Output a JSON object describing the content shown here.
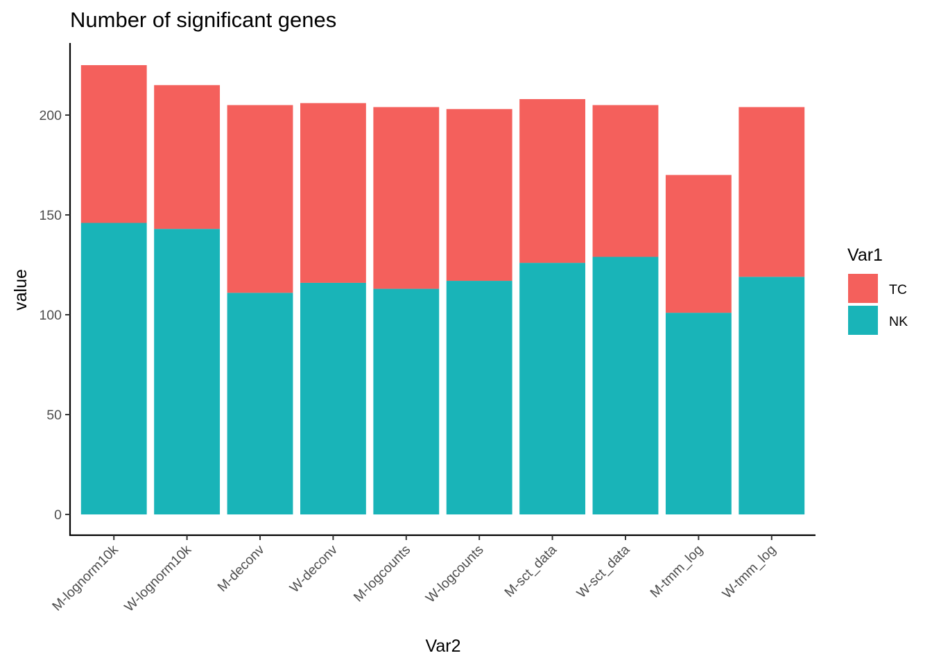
{
  "chart_data": {
    "type": "bar",
    "stacked": true,
    "title": "Number of significant genes",
    "xlabel": "Var2",
    "ylabel": "value",
    "ylim": [
      -10.4,
      236.1
    ],
    "yticks": [
      0,
      50,
      100,
      150,
      200
    ],
    "grid": false,
    "categories": [
      "M-lognorm10k",
      "W-lognorm10k",
      "M-deconv",
      "W-deconv",
      "M-logcounts",
      "W-logcounts",
      "M-sct_data",
      "W-sct_data",
      "M-tmm_log",
      "W-tmm_log"
    ],
    "series": [
      {
        "name": "NK",
        "color": "#19B4B8",
        "values": [
          146,
          143,
          111,
          116,
          113,
          117,
          126,
          129,
          101,
          119
        ]
      },
      {
        "name": "TC",
        "color": "#F4605C",
        "values": [
          79,
          72,
          94,
          90,
          91,
          86,
          82,
          76,
          69,
          85
        ]
      }
    ],
    "legend": {
      "title": "Var1",
      "position": "right",
      "entries": [
        {
          "label": "TC",
          "color": "#F4605C"
        },
        {
          "label": "NK",
          "color": "#19B4B8"
        }
      ]
    }
  }
}
